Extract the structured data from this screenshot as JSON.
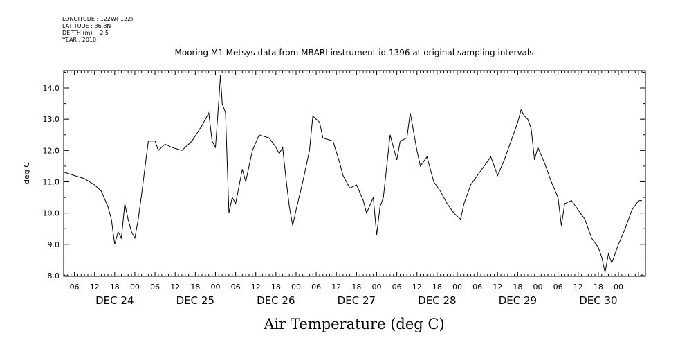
{
  "header": {
    "longitude": "LONGITUDE : 122W(-122)",
    "latitude": "LATITUDE : 36.8N",
    "depth": "DEPTH (m) : -2.5",
    "year": "YEAR : 2010"
  },
  "chart_data": {
    "type": "line",
    "title": "Mooring M1 Metsys data from MBARI instrument id 1396 at original sampling intervals",
    "xlabel": "Air Temperature (deg C)",
    "ylabel": "deg C",
    "ylim": [
      8.0,
      14.5
    ],
    "y_ticks": [
      "8.0",
      "9.0",
      "10.0",
      "11.0",
      "12.0",
      "13.0",
      "14.0"
    ],
    "x_start": "2010-12-23T21:00",
    "x_end": "2010-12-31T01:00",
    "hour_ticks": [
      "06",
      "12",
      "18",
      "00",
      "06",
      "12",
      "18",
      "00",
      "06",
      "12",
      "18",
      "00",
      "06",
      "12",
      "18",
      "00",
      "06",
      "12",
      "18",
      "00",
      "06",
      "12",
      "18",
      "00",
      "06",
      "12",
      "18",
      "00"
    ],
    "day_labels": [
      "DEC 24",
      "DEC 25",
      "DEC 26",
      "DEC 27",
      "DEC 28",
      "DEC 29",
      "DEC 30"
    ],
    "grid": false,
    "series": [
      {
        "values": [
          [
            "2010-12-23T21:00",
            11.3
          ],
          [
            "2010-12-24T00:00",
            11.2
          ],
          [
            "2010-12-24T03:00",
            11.1
          ],
          [
            "2010-12-24T06:00",
            10.9
          ],
          [
            "2010-12-24T08:00",
            10.7
          ],
          [
            "2010-12-24T10:00",
            10.2
          ],
          [
            "2010-12-24T11:00",
            9.8
          ],
          [
            "2010-12-24T12:00",
            9.0
          ],
          [
            "2010-12-24T13:00",
            9.4
          ],
          [
            "2010-12-24T14:00",
            9.2
          ],
          [
            "2010-12-24T15:00",
            10.3
          ],
          [
            "2010-12-24T16:00",
            9.8
          ],
          [
            "2010-12-24T17:00",
            9.4
          ],
          [
            "2010-12-24T18:00",
            9.2
          ],
          [
            "2010-12-24T19:00",
            9.8
          ],
          [
            "2010-12-24T20:00",
            10.6
          ],
          [
            "2010-12-24T22:00",
            12.3
          ],
          [
            "2010-12-25T00:00",
            12.3
          ],
          [
            "2010-12-25T01:00",
            12.0
          ],
          [
            "2010-12-25T03:00",
            12.2
          ],
          [
            "2010-12-25T05:00",
            12.1
          ],
          [
            "2010-12-25T08:00",
            12.0
          ],
          [
            "2010-12-25T11:00",
            12.3
          ],
          [
            "2010-12-25T14:00",
            12.8
          ],
          [
            "2010-12-25T15:00",
            13.0
          ],
          [
            "2010-12-25T16:00",
            13.2
          ],
          [
            "2010-12-25T17:00",
            12.3
          ],
          [
            "2010-12-25T18:00",
            12.1
          ],
          [
            "2010-12-25T19:00",
            13.6
          ],
          [
            "2010-12-25T19:30",
            14.4
          ],
          [
            "2010-12-25T20:00",
            13.5
          ],
          [
            "2010-12-25T21:00",
            13.2
          ],
          [
            "2010-12-25T22:00",
            10.0
          ],
          [
            "2010-12-25T23:00",
            10.5
          ],
          [
            "2010-12-26T00:00",
            10.3
          ],
          [
            "2010-12-26T02:00",
            11.4
          ],
          [
            "2010-12-26T03:00",
            11.0
          ],
          [
            "2010-12-26T04:00",
            11.5
          ],
          [
            "2010-12-26T05:00",
            12.0
          ],
          [
            "2010-12-26T07:00",
            12.5
          ],
          [
            "2010-12-26T10:00",
            12.4
          ],
          [
            "2010-12-26T12:00",
            12.1
          ],
          [
            "2010-12-26T13:00",
            11.9
          ],
          [
            "2010-12-26T14:00",
            12.1
          ],
          [
            "2010-12-26T15:00",
            11.1
          ],
          [
            "2010-12-26T16:00",
            10.2
          ],
          [
            "2010-12-26T17:00",
            9.6
          ],
          [
            "2010-12-26T18:00",
            10.1
          ],
          [
            "2010-12-26T20:00",
            11.0
          ],
          [
            "2010-12-26T22:00",
            12.0
          ],
          [
            "2010-12-26T23:00",
            13.1
          ],
          [
            "2010-12-27T01:00",
            12.9
          ],
          [
            "2010-12-27T02:00",
            12.4
          ],
          [
            "2010-12-27T05:00",
            12.3
          ],
          [
            "2010-12-27T07:00",
            11.6
          ],
          [
            "2010-12-27T08:00",
            11.2
          ],
          [
            "2010-12-27T10:00",
            10.8
          ],
          [
            "2010-12-27T12:00",
            10.9
          ],
          [
            "2010-12-27T14:00",
            10.4
          ],
          [
            "2010-12-27T15:00",
            10.0
          ],
          [
            "2010-12-27T17:00",
            10.5
          ],
          [
            "2010-12-27T18:00",
            9.3
          ],
          [
            "2010-12-27T19:00",
            10.2
          ],
          [
            "2010-12-27T20:00",
            10.5
          ],
          [
            "2010-12-27T22:00",
            12.5
          ],
          [
            "2010-12-28T00:00",
            11.7
          ],
          [
            "2010-12-28T01:00",
            12.3
          ],
          [
            "2010-12-28T03:00",
            12.4
          ],
          [
            "2010-12-28T04:00",
            13.2
          ],
          [
            "2010-12-28T05:00",
            12.6
          ],
          [
            "2010-12-28T06:00",
            12.0
          ],
          [
            "2010-12-28T07:00",
            11.5
          ],
          [
            "2010-12-28T09:00",
            11.8
          ],
          [
            "2010-12-28T11:00",
            11.0
          ],
          [
            "2010-12-28T13:00",
            10.7
          ],
          [
            "2010-12-28T15:00",
            10.3
          ],
          [
            "2010-12-28T17:00",
            10.0
          ],
          [
            "2010-12-28T19:00",
            9.8
          ],
          [
            "2010-12-28T20:00",
            10.3
          ],
          [
            "2010-12-28T22:00",
            10.9
          ],
          [
            "2010-12-29T00:00",
            11.2
          ],
          [
            "2010-12-29T02:00",
            11.5
          ],
          [
            "2010-12-29T04:00",
            11.8
          ],
          [
            "2010-12-29T06:00",
            11.2
          ],
          [
            "2010-12-29T08:00",
            11.7
          ],
          [
            "2010-12-29T10:00",
            12.3
          ],
          [
            "2010-12-29T12:00",
            12.9
          ],
          [
            "2010-12-29T13:00",
            13.3
          ],
          [
            "2010-12-29T14:00",
            13.1
          ],
          [
            "2010-12-29T15:00",
            13.0
          ],
          [
            "2010-12-29T16:00",
            12.7
          ],
          [
            "2010-12-29T17:00",
            11.7
          ],
          [
            "2010-12-29T18:00",
            12.1
          ],
          [
            "2010-12-29T20:00",
            11.6
          ],
          [
            "2010-12-29T22:00",
            11.0
          ],
          [
            "2010-12-30T00:00",
            10.5
          ],
          [
            "2010-12-30T01:00",
            9.6
          ],
          [
            "2010-12-30T02:00",
            10.3
          ],
          [
            "2010-12-30T04:00",
            10.4
          ],
          [
            "2010-12-30T06:00",
            10.1
          ],
          [
            "2010-12-30T08:00",
            9.8
          ],
          [
            "2010-12-30T10:00",
            9.2
          ],
          [
            "2010-12-30T12:00",
            8.9
          ],
          [
            "2010-12-30T13:00",
            8.6
          ],
          [
            "2010-12-30T14:00",
            8.1
          ],
          [
            "2010-12-30T15:00",
            8.7
          ],
          [
            "2010-12-30T16:00",
            8.4
          ],
          [
            "2010-12-30T18:00",
            9.0
          ],
          [
            "2010-12-30T20:00",
            9.5
          ],
          [
            "2010-12-30T22:00",
            10.1
          ],
          [
            "2010-12-31T00:00",
            10.4
          ],
          [
            "2010-12-31T01:00",
            10.4
          ]
        ]
      }
    ]
  }
}
